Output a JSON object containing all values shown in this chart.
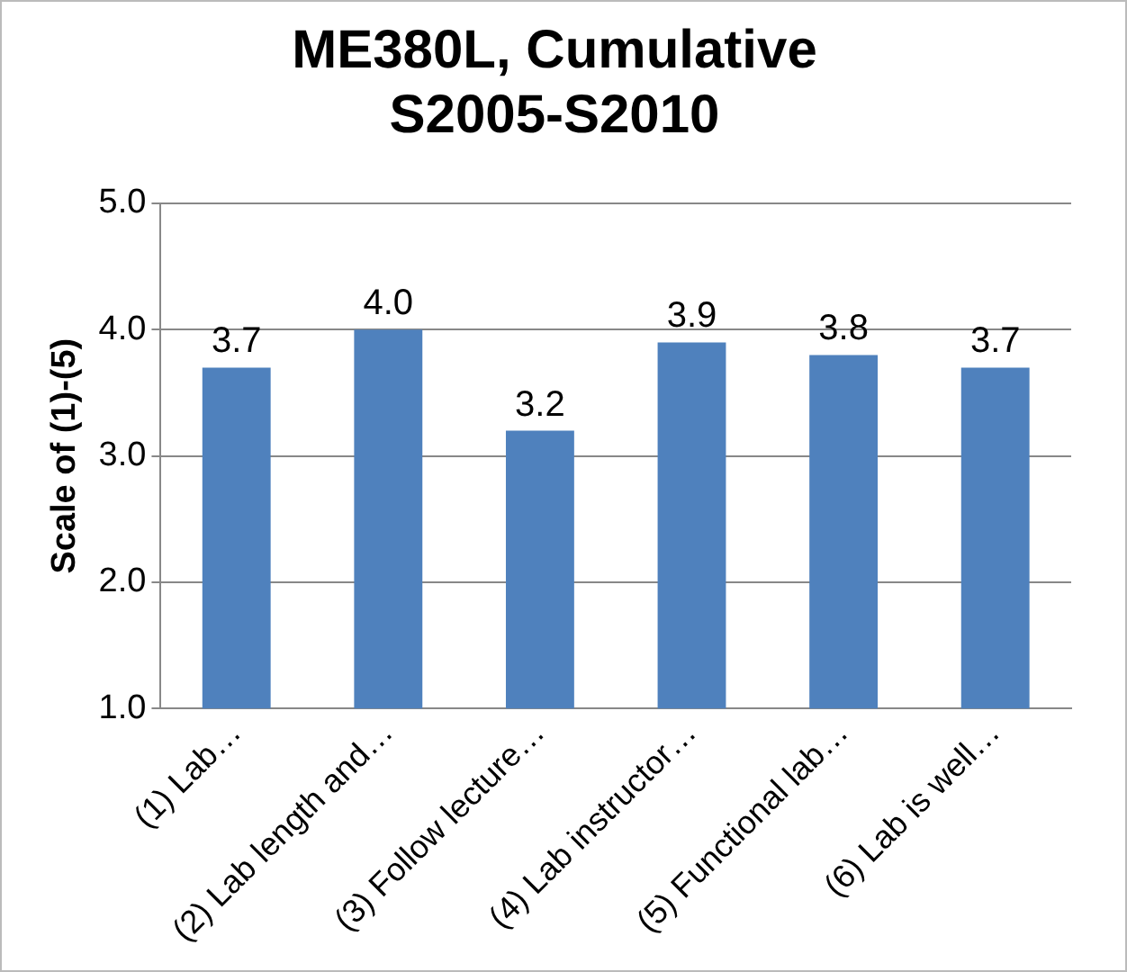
{
  "chart_data": {
    "type": "bar",
    "title": "ME380L, Cumulative S2005-S2010",
    "ylabel": "Scale of (1)-(5)",
    "categories": [
      "(1) Lab…",
      "(2) Lab length and…",
      "(3) Follow lecture…",
      "(4) Lab instructor…",
      "(5) Functional lab…",
      "(6) Lab is well…"
    ],
    "values": [
      3.7,
      4.0,
      3.2,
      3.9,
      3.8,
      3.7
    ],
    "value_labels": [
      "3.7",
      "4.0",
      "3.2",
      "3.9",
      "3.8",
      "3.7"
    ],
    "color": "#4f81bd",
    "ylim": [
      1,
      5
    ],
    "yticks": [
      {
        "value": 1,
        "label": "1.0"
      },
      {
        "value": 2,
        "label": "2.0"
      },
      {
        "value": 3,
        "label": "3.0"
      },
      {
        "value": 4,
        "label": "4.0"
      },
      {
        "value": 5,
        "label": "5.0"
      }
    ],
    "grid": "y",
    "legend": false
  }
}
